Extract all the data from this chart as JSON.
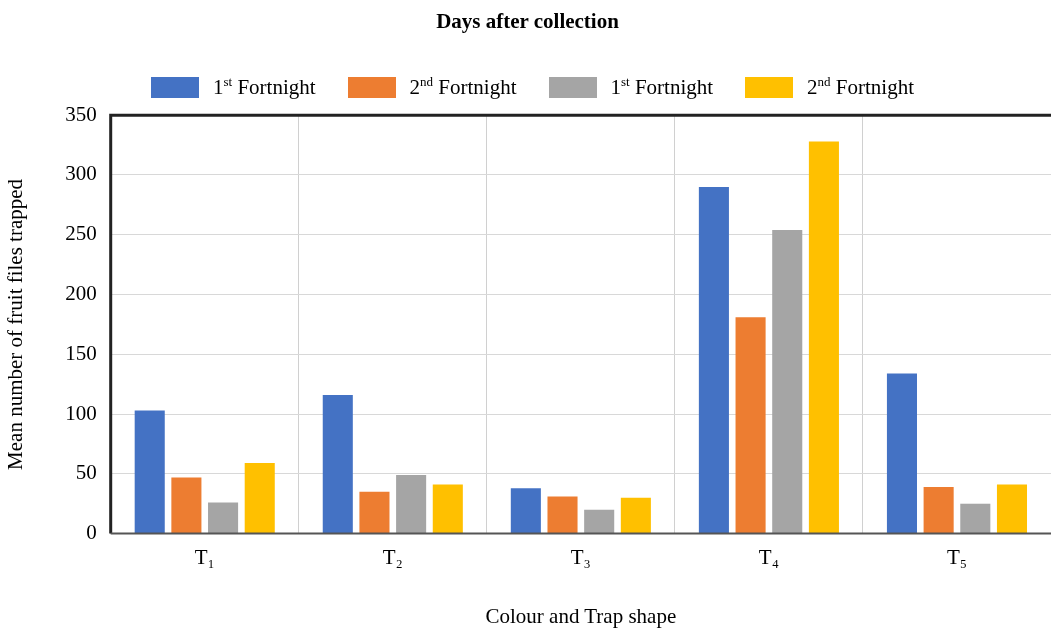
{
  "chart_data": {
    "type": "bar",
    "title": "Days after collection",
    "xlabel": "Colour and Trap shape",
    "ylabel": "Mean number of fruit files trapped",
    "categories": [
      "T₁",
      "T₂",
      "T₃",
      "T₄",
      "T₅"
    ],
    "series": [
      {
        "name": "1$^{st}$ Fortnight",
        "color": "#4472c4",
        "values": [
          103,
          116,
          38,
          290,
          134
        ]
      },
      {
        "name": "2$^{nd}$ Fortnight",
        "color": "#ed7d31",
        "values": [
          47,
          35,
          31,
          181,
          39
        ]
      },
      {
        "name": "1$^{st}$ Fortnight",
        "color": "#a5a5a5",
        "values": [
          26,
          49,
          20,
          254,
          25
        ]
      },
      {
        "name": "2$^{nd}$ Fortnight",
        "color": "#ffc000",
        "values": [
          59,
          41,
          30,
          328,
          41
        ]
      }
    ],
    "ylim": [
      0,
      350
    ],
    "yticks": [
      0,
      50,
      100,
      150,
      200,
      250,
      300,
      350
    ],
    "grid": true,
    "legend": "top"
  }
}
